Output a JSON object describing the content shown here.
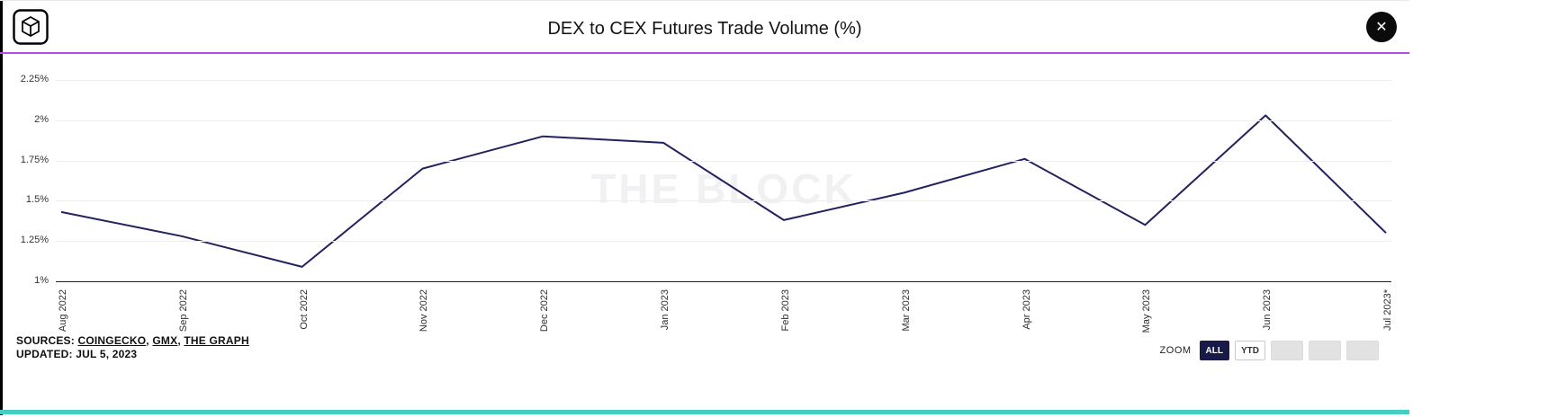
{
  "header": {
    "title": "DEX to CEX Futures Trade Volume (%)",
    "close_glyph": "✕"
  },
  "chart_data": {
    "type": "line",
    "title": "DEX to CEX Futures Trade Volume (%)",
    "categories": [
      "Aug 2022",
      "Sep 2022",
      "Oct 2022",
      "Nov 2022",
      "Dec 2022",
      "Jan 2023",
      "Feb 2023",
      "Mar 2023",
      "Apr 2023",
      "May 2023",
      "Jun 2023",
      "Jul 2023*"
    ],
    "series": [
      {
        "name": "DEX to CEX Futures Trade Volume (%)",
        "values": [
          1.43,
          1.28,
          1.09,
          1.7,
          1.9,
          1.86,
          1.38,
          1.55,
          1.76,
          1.35,
          2.03,
          1.3
        ]
      }
    ],
    "ylim": [
      1,
      2.25
    ],
    "yticks": [
      1,
      1.25,
      1.5,
      1.75,
      2,
      2.25
    ],
    "ytick_labels": [
      "1%",
      "1.25%",
      "1.5%",
      "1.75%",
      "2%",
      "2.25%"
    ],
    "xlabel": "",
    "ylabel": "",
    "grid": true,
    "legend": false,
    "line_color": "#23225f",
    "watermark": "THE BLOCK"
  },
  "footer": {
    "sources_label": "SOURCES:",
    "source_links": [
      "COINGECKO",
      "GMX",
      "THE GRAPH"
    ],
    "separator": ", ",
    "updated": "UPDATED: JUL 5, 2023",
    "zoom_label": "ZOOM",
    "zoom_buttons": [
      {
        "label": "ALL",
        "state": "active"
      },
      {
        "label": "YTD",
        "state": "outline"
      },
      {
        "label": "",
        "state": "empty"
      },
      {
        "label": "",
        "state": "empty"
      },
      {
        "label": "",
        "state": "empty"
      }
    ]
  },
  "colors": {
    "accent_purple": "#b44ce8",
    "line": "#23225f",
    "teal_bar": "#45cfc4",
    "zoom_active_bg": "#191a4a"
  }
}
